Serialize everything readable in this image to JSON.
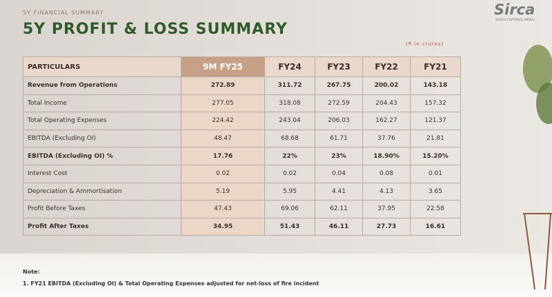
{
  "header": {
    "kicker": "5Y FINANCIAL SUMMARY",
    "title": "5Y PROFIT & LOSS SUMMARY",
    "logo": "Sirca",
    "logo_tagline": "WOOD COATINGS (INDIA)",
    "unit_note": "(₹ in crores)"
  },
  "table": {
    "columns": [
      "PARTICULARS",
      "9M FY25",
      "FY24",
      "FY23",
      "FY22",
      "FY21"
    ],
    "rows": [
      [
        "Revenue from Operations",
        "272.89",
        "311.72",
        "267.75",
        "200.02",
        "143.18"
      ],
      [
        "Total Income",
        "277.05",
        "318.08",
        "272.59",
        "204.43",
        "157.32"
      ],
      [
        "Total Operating Expenses",
        "224.42",
        "243.04",
        "206.03",
        "162.27",
        "121.37"
      ],
      [
        "EBITDA (Excluding OI)",
        "48.47",
        "68.68",
        "61.71",
        "37.76",
        "21.81"
      ],
      [
        "EBITDA (Excluding OI) %",
        "17.76",
        "22%",
        "23%",
        "18.90%",
        "15.20%"
      ],
      [
        "Interest Cost",
        "0.02",
        "0.02",
        "0.04",
        "0.08",
        "0.01"
      ],
      [
        "Depreciation & Ammortisation",
        "5.19",
        "5.95",
        "4.41",
        "4.13",
        "3.65"
      ],
      [
        "Profit Before Taxes",
        "47.43",
        "69.06",
        "62.11",
        "37.95",
        "22.58"
      ],
      [
        "Profit After Taxes",
        "34.95",
        "51.43",
        "46.11",
        "27.73",
        "16.61"
      ]
    ],
    "bold_rows": [
      0,
      4,
      8
    ]
  },
  "note": {
    "heading": "Note:",
    "items": [
      "1. FY21 EBITDA (Excluding OI) & Total Operating Expenses adjusted for net-loss of fire incident"
    ]
  }
}
